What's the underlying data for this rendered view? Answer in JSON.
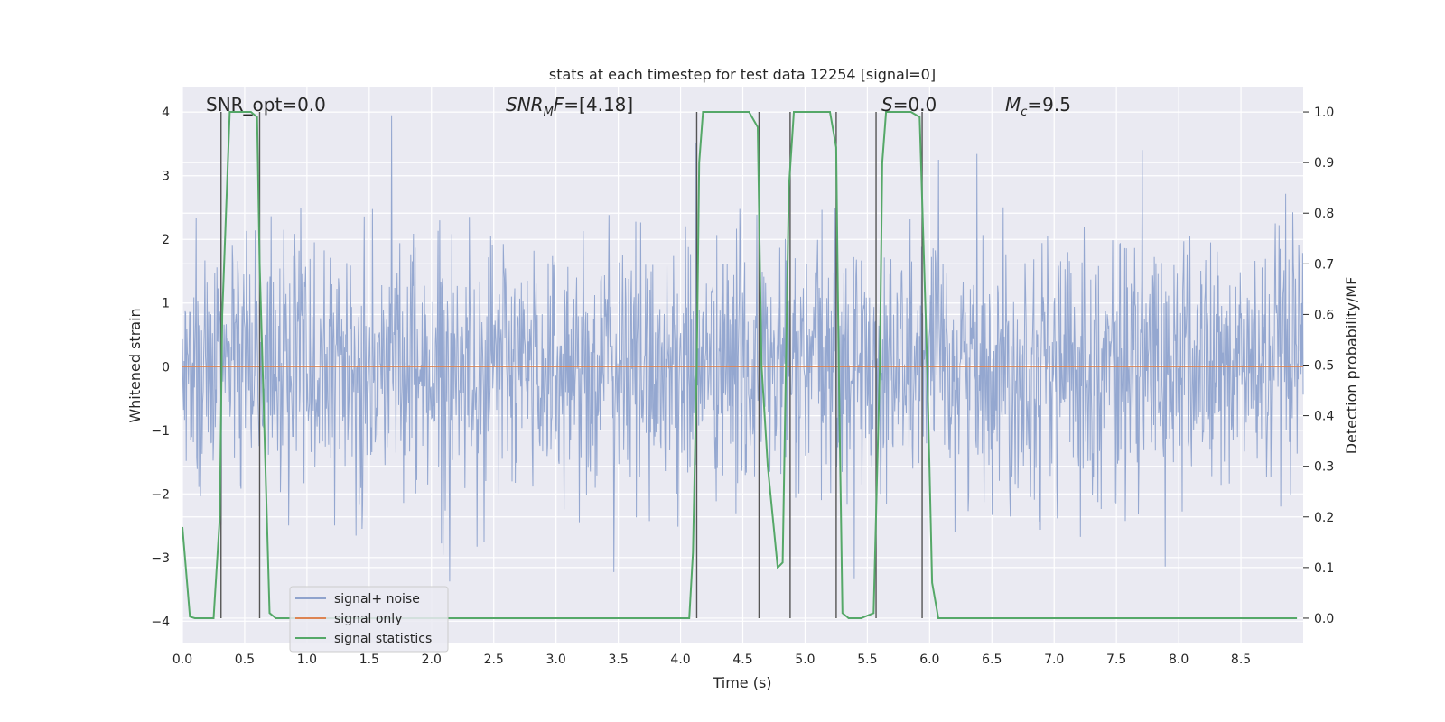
{
  "chart_data": {
    "type": "line",
    "title": "stats at each timestep for test data 12254 [signal=0]",
    "xlabel": "Time (s)",
    "ylabel": "Whitened strain",
    "ylabel_right": "Detection probability/MF",
    "xlim": [
      0.0,
      9.0
    ],
    "ylim": [
      -4.35,
      4.4
    ],
    "ylim_right": [
      -0.05,
      1.05
    ],
    "x_ticks": [
      "0.0",
      "0.5",
      "1.0",
      "1.5",
      "2.0",
      "2.5",
      "3.0",
      "3.5",
      "4.0",
      "4.5",
      "5.0",
      "5.5",
      "6.0",
      "6.5",
      "7.0",
      "7.5",
      "8.0",
      "8.5"
    ],
    "y_ticks": [
      "4",
      "3",
      "2",
      "1",
      "0",
      "−1",
      "−2",
      "−3",
      "−4"
    ],
    "y_right_ticks": [
      "1.0",
      "0.9",
      "0.8",
      "0.7",
      "0.6",
      "0.5",
      "0.4",
      "0.3",
      "0.2",
      "0.1",
      "0.0"
    ],
    "grid": true,
    "legend": {
      "position": "lower-left",
      "entries": [
        {
          "label": "signal+ noise",
          "color": "#8fa3cd"
        },
        {
          "label": "signal only",
          "color": "#dd8452"
        },
        {
          "label": "signal statistics",
          "color": "#55a868"
        }
      ]
    },
    "annotations": [
      {
        "text": "SNR_opt=0.0",
        "x": 0.2
      },
      {
        "text": "=[4.18]",
        "prefix": "SNR",
        "sub": "M",
        "mid": "F",
        "x": 2.6
      },
      {
        "text": "=0.0",
        "prefix": "S",
        "x": 5.6
      },
      {
        "text": "=9.5",
        "prefix": "M",
        "sub": "c",
        "x": 6.6
      }
    ],
    "noise": {
      "description_free": true,
      "n_samples": 2048,
      "sigma": 1.0,
      "color": "#8fa3cd"
    },
    "signal_only": {
      "y": 0.0,
      "color": "#dd8452"
    },
    "statistics": {
      "color": "#55a868",
      "x": [
        0.0,
        0.06,
        0.1,
        0.2,
        0.25,
        0.3,
        0.32,
        0.38,
        0.45,
        0.55,
        0.6,
        0.62,
        0.7,
        0.75,
        0.8,
        1.0,
        1.5,
        2.0,
        2.5,
        3.0,
        3.5,
        4.0,
        4.07,
        4.1,
        4.13,
        4.15,
        4.18,
        4.25,
        4.4,
        4.55,
        4.62,
        4.65,
        4.7,
        4.78,
        4.82,
        4.87,
        4.91,
        4.95,
        5.0,
        5.15,
        5.2,
        5.25,
        5.27,
        5.3,
        5.35,
        5.45,
        5.55,
        5.6,
        5.62,
        5.65,
        5.75,
        5.85,
        5.92,
        5.98,
        6.02,
        6.07,
        6.2,
        6.5,
        7.0,
        7.5,
        8.0,
        8.5,
        8.95
      ],
      "y": [
        0.18,
        0.003,
        0.0,
        0.0,
        0.0,
        0.2,
        0.6,
        1.0,
        1.0,
        1.0,
        0.99,
        0.7,
        0.01,
        0.0,
        0.0,
        0.0,
        0.0,
        0.0,
        0.0,
        0.0,
        0.0,
        0.0,
        0.0,
        0.13,
        0.5,
        0.9,
        1.0,
        1.0,
        1.0,
        1.0,
        0.97,
        0.5,
        0.3,
        0.1,
        0.11,
        0.85,
        1.0,
        1.0,
        1.0,
        1.0,
        1.0,
        0.93,
        0.5,
        0.01,
        0.0,
        0.0,
        0.01,
        0.5,
        0.9,
        1.0,
        1.0,
        1.0,
        0.99,
        0.5,
        0.07,
        0.0,
        0.0,
        0.0,
        0.0,
        0.0,
        0.0,
        0.0,
        0.0
      ]
    },
    "vlines": [
      0.31,
      0.62,
      4.13,
      4.63,
      4.88,
      5.25,
      5.57,
      5.94
    ]
  }
}
